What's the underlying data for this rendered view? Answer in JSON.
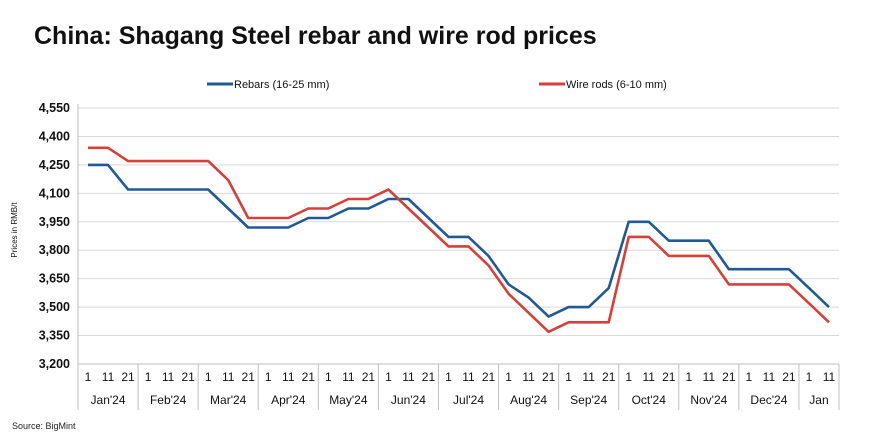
{
  "title": "China: Shagang Steel rebar and wire rod prices",
  "source": "Source: BigMint",
  "chart_data": {
    "type": "line",
    "ylabel": "Prices in RMB/t",
    "ylim": [
      3200,
      4550
    ],
    "yticks": [
      3200,
      3350,
      3500,
      3650,
      3800,
      3950,
      4100,
      4250,
      4400,
      4550
    ],
    "ytick_labels": [
      "3,200",
      "3,350",
      "3,500",
      "3,650",
      "3,800",
      "3,950",
      "4,100",
      "4,250",
      "4,400",
      "4,550"
    ],
    "grid": true,
    "legend_position": "top",
    "x": [
      "1",
      "11",
      "21",
      "1",
      "11",
      "21",
      "1",
      "11",
      "21",
      "1",
      "11",
      "21",
      "1",
      "11",
      "21",
      "1",
      "11",
      "21",
      "1",
      "11",
      "21",
      "1",
      "11",
      "21",
      "1",
      "11",
      "21",
      "1",
      "11",
      "21",
      "1",
      "11",
      "21",
      "1",
      "11",
      "21",
      "1",
      "11"
    ],
    "months": [
      {
        "label": "Jan'24",
        "count": 3
      },
      {
        "label": "Feb'24",
        "count": 3
      },
      {
        "label": "Mar'24",
        "count": 3
      },
      {
        "label": "Apr'24",
        "count": 3
      },
      {
        "label": "May'24",
        "count": 3
      },
      {
        "label": "Jun'24",
        "count": 3
      },
      {
        "label": "Jul'24",
        "count": 3
      },
      {
        "label": "Aug'24",
        "count": 3
      },
      {
        "label": "Sep'24",
        "count": 3
      },
      {
        "label": "Oct'24",
        "count": 3
      },
      {
        "label": "Nov'24",
        "count": 3
      },
      {
        "label": "Dec'24",
        "count": 3
      },
      {
        "label": "Jan",
        "count": 2
      }
    ],
    "series": [
      {
        "name": "Rebars (16-25 mm)",
        "color": "#1f5a96",
        "values": [
          4250,
          4250,
          4120,
          4120,
          4120,
          4120,
          4120,
          4020,
          3920,
          3920,
          3920,
          3970,
          3970,
          4020,
          4020,
          4070,
          4070,
          3970,
          3870,
          3870,
          3770,
          3620,
          3550,
          3450,
          3500,
          3500,
          3600,
          3950,
          3950,
          3850,
          3850,
          3850,
          3700,
          3700,
          3700,
          3700,
          3600,
          3500
        ]
      },
      {
        "name": "Wire rods (6-10 mm)",
        "color": "#d6403a",
        "values": [
          4340,
          4340,
          4270,
          4270,
          4270,
          4270,
          4270,
          4170,
          3970,
          3970,
          3970,
          4020,
          4020,
          4070,
          4070,
          4120,
          4020,
          3920,
          3820,
          3820,
          3720,
          3570,
          3470,
          3370,
          3420,
          3420,
          3420,
          3870,
          3870,
          3770,
          3770,
          3770,
          3620,
          3620,
          3620,
          3620,
          3520,
          3420
        ]
      }
    ]
  }
}
